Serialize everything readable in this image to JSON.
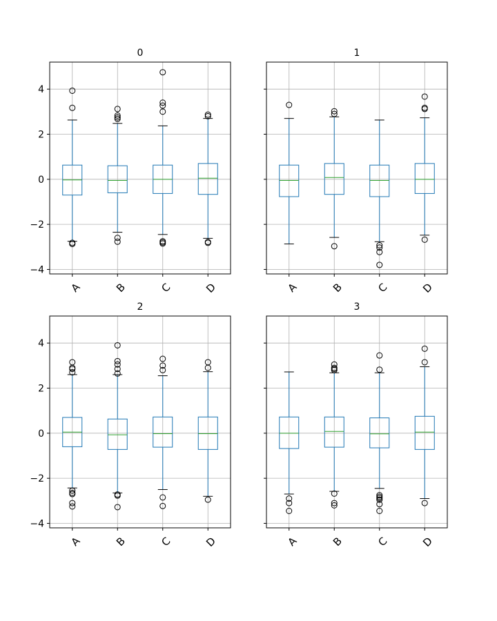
{
  "chart_data": [
    {
      "type": "box",
      "title": "0",
      "categories": [
        "A",
        "B",
        "C",
        "D"
      ],
      "ylim": [
        -4.2,
        5.2
      ],
      "yticks": [
        -4,
        -2,
        0,
        2,
        4
      ],
      "ytick_labels": [
        "−4",
        "−2",
        "0",
        "2",
        "4"
      ],
      "grid": true,
      "boxes": [
        {
          "q1": -0.7,
          "median": -0.03,
          "q3": 0.63,
          "whisker_low": -2.75,
          "whisker_high": 2.63,
          "outliers": [
            3.93,
            3.17,
            -2.82,
            -2.87
          ]
        },
        {
          "q1": -0.6,
          "median": -0.05,
          "q3": 0.6,
          "whisker_low": -2.35,
          "whisker_high": 2.48,
          "outliers": [
            3.12,
            2.83,
            2.75,
            2.68,
            -2.6,
            -2.77
          ]
        },
        {
          "q1": -0.63,
          "median": 0.0,
          "q3": 0.63,
          "whisker_low": -2.45,
          "whisker_high": 2.37,
          "outliers": [
            4.75,
            3.4,
            3.27,
            3.0,
            -2.75,
            -2.8,
            -2.85
          ]
        },
        {
          "q1": -0.67,
          "median": 0.05,
          "q3": 0.7,
          "whisker_low": -2.62,
          "whisker_high": 2.7,
          "outliers": [
            2.87,
            2.8,
            -2.78,
            -2.82
          ]
        }
      ]
    },
    {
      "type": "box",
      "title": "1",
      "categories": [
        "A",
        "B",
        "C",
        "D"
      ],
      "ylim": [
        -4.2,
        5.2
      ],
      "yticks": [
        -4,
        -2,
        0,
        2,
        4
      ],
      "grid": true,
      "boxes": [
        {
          "q1": -0.77,
          "median": -0.05,
          "q3": 0.63,
          "whisker_low": -2.87,
          "whisker_high": 2.7,
          "outliers": [
            3.3
          ]
        },
        {
          "q1": -0.67,
          "median": 0.08,
          "q3": 0.7,
          "whisker_low": -2.58,
          "whisker_high": 2.77,
          "outliers": [
            3.02,
            2.9,
            -2.97
          ]
        },
        {
          "q1": -0.77,
          "median": -0.05,
          "q3": 0.63,
          "whisker_low": -2.77,
          "whisker_high": 2.63,
          "outliers": [
            -2.93,
            -3.03,
            -3.23,
            -3.8
          ]
        },
        {
          "q1": -0.63,
          "median": 0.0,
          "q3": 0.7,
          "whisker_low": -2.48,
          "whisker_high": 2.73,
          "outliers": [
            3.67,
            3.17,
            3.12,
            -2.68
          ]
        }
      ]
    },
    {
      "type": "box",
      "title": "2",
      "categories": [
        "A",
        "B",
        "C",
        "D"
      ],
      "ylim": [
        -4.2,
        5.2
      ],
      "yticks": [
        -4,
        -2,
        0,
        2,
        4
      ],
      "ytick_labels": [
        "−4",
        "−2",
        "0",
        "2",
        "4"
      ],
      "grid": true,
      "boxes": [
        {
          "q1": -0.6,
          "median": 0.05,
          "q3": 0.7,
          "whisker_low": -2.43,
          "whisker_high": 2.6,
          "outliers": [
            3.15,
            2.9,
            2.85,
            2.7,
            -2.55,
            -2.65,
            -2.7,
            -3.1,
            -3.25
          ]
        },
        {
          "q1": -0.72,
          "median": -0.07,
          "q3": 0.63,
          "whisker_low": -2.65,
          "whisker_high": 2.6,
          "outliers": [
            3.9,
            3.2,
            3.05,
            2.85,
            2.65,
            -2.72,
            -2.77,
            -3.28
          ]
        },
        {
          "q1": -0.62,
          "median": -0.02,
          "q3": 0.72,
          "whisker_low": -2.5,
          "whisker_high": 2.55,
          "outliers": [
            3.3,
            3.0,
            2.8,
            -2.85,
            -3.23
          ]
        },
        {
          "q1": -0.72,
          "median": -0.02,
          "q3": 0.72,
          "whisker_low": -2.8,
          "whisker_high": 2.73,
          "outliers": [
            3.15,
            2.9,
            -2.95
          ]
        }
      ]
    },
    {
      "type": "box",
      "title": "3",
      "categories": [
        "A",
        "B",
        "C",
        "D"
      ],
      "ylim": [
        -4.2,
        5.2
      ],
      "yticks": [
        -4,
        -2,
        0,
        2,
        4
      ],
      "grid": true,
      "boxes": [
        {
          "q1": -0.68,
          "median": 0.0,
          "q3": 0.72,
          "whisker_low": -2.7,
          "whisker_high": 2.72,
          "outliers": [
            -2.9,
            -3.1,
            -3.45
          ]
        },
        {
          "q1": -0.62,
          "median": 0.08,
          "q3": 0.72,
          "whisker_low": -2.58,
          "whisker_high": 2.68,
          "outliers": [
            3.05,
            2.9,
            2.85,
            2.8,
            -2.68,
            -3.1,
            -3.2
          ]
        },
        {
          "q1": -0.65,
          "median": -0.03,
          "q3": 0.68,
          "whisker_low": -2.45,
          "whisker_high": 2.68,
          "outliers": [
            3.45,
            2.82,
            -2.75,
            -2.82,
            -2.88,
            -2.95,
            -3.15,
            -3.45
          ]
        },
        {
          "q1": -0.72,
          "median": 0.05,
          "q3": 0.75,
          "whisker_low": -2.9,
          "whisker_high": 2.95,
          "outliers": [
            3.75,
            3.15,
            -3.1
          ]
        }
      ]
    }
  ],
  "colors": {
    "box": "#1f77b4",
    "median": "#2ca02c",
    "grid": "#b0b0b0",
    "outlier": "#000000",
    "axes": "#000000"
  }
}
